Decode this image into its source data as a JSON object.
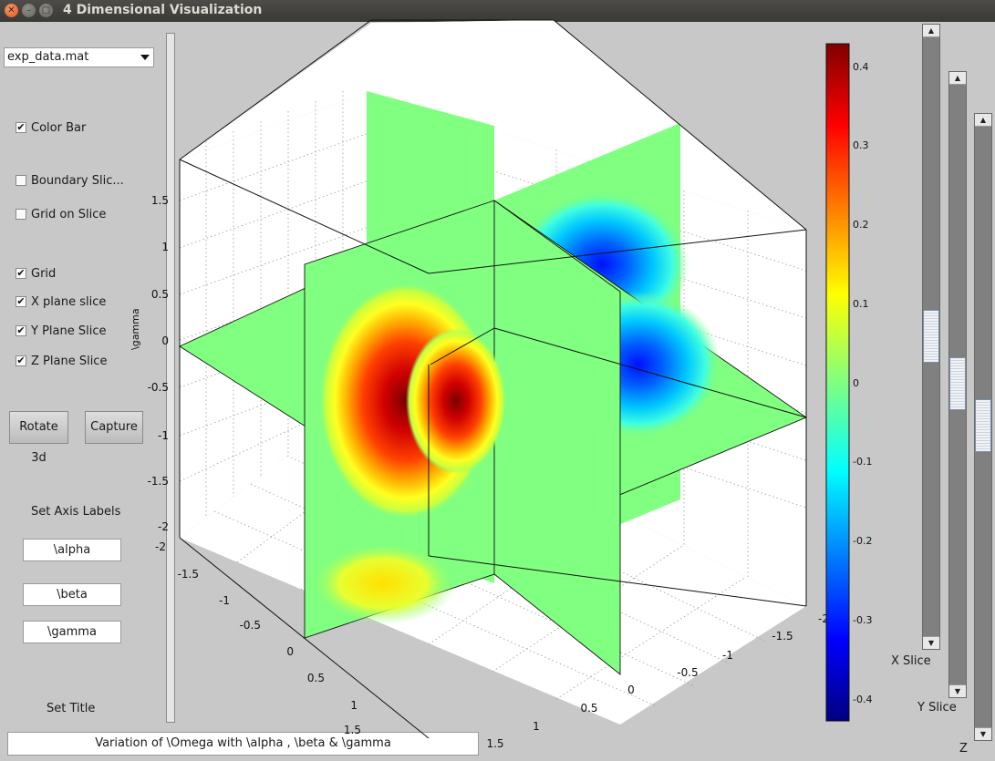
{
  "window": {
    "title": "4 Dimensional Visualization"
  },
  "dataset_select": {
    "value": "exp_data.mat"
  },
  "checkboxes": [
    {
      "label": "Color Bar",
      "checked": true
    },
    {
      "label": "Boundary Slic...",
      "checked": false
    },
    {
      "label": "Grid on Slice",
      "checked": false
    },
    {
      "label": "Grid",
      "checked": true
    },
    {
      "label": "X plane slice",
      "checked": true
    },
    {
      "label": "Y Plane Slice",
      "checked": true
    },
    {
      "label": "Z Plane Slice",
      "checked": true
    }
  ],
  "buttons": {
    "rotate": "Rotate 3d",
    "capture": "Capture"
  },
  "axis_labels": {
    "heading": "Set Axis Labels",
    "x": "\\alpha",
    "y": "\\beta",
    "z": "\\gamma"
  },
  "title_setting": {
    "heading": "Set Title",
    "value": "Variation of \\Omega with \\alpha , \\beta & \\gamma"
  },
  "plot": {
    "z_axis_label": "\\gamma",
    "z_ticks": [
      "-2",
      "-1.5",
      "-1",
      "-0.5",
      "0",
      "0.5",
      "1",
      "1.5"
    ],
    "x_ticks": [
      "-2",
      "-1.5",
      "-1",
      "-0.5",
      "0",
      "0.5",
      "1",
      "1.5"
    ],
    "y_ticks": [
      "-2",
      "-1.5",
      "-1",
      "-0.5",
      "0",
      "0.5",
      "1",
      "1.5"
    ],
    "colorbar_ticks": [
      "0.4",
      "0.3",
      "0.2",
      "0.1",
      "0",
      "-0.1",
      "-0.2",
      "-0.3",
      "-0.4"
    ],
    "colorbar_range": [
      -0.43,
      0.43
    ],
    "colormap": "jet"
  },
  "sliders": [
    {
      "label": "X Slice",
      "value": 0.55
    },
    {
      "label": "Y Slice",
      "value": 0.5
    },
    {
      "label": "Z",
      "value": 0.5
    }
  ],
  "colors": {
    "background": "#c8c8c8",
    "slice_neutral": "#80ff80",
    "titlebar": "#3c3b37"
  }
}
